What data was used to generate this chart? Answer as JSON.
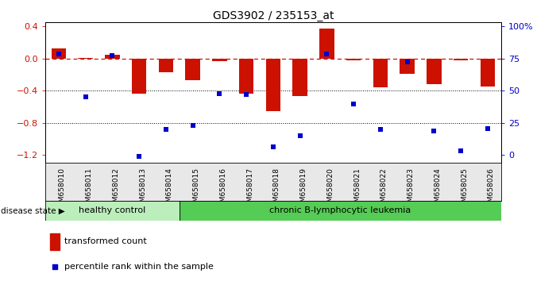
{
  "title": "GDS3902 / 235153_at",
  "samples": [
    "GSM658010",
    "GSM658011",
    "GSM658012",
    "GSM658013",
    "GSM658014",
    "GSM658015",
    "GSM658016",
    "GSM658017",
    "GSM658018",
    "GSM658019",
    "GSM658020",
    "GSM658021",
    "GSM658022",
    "GSM658023",
    "GSM658024",
    "GSM658025",
    "GSM658026"
  ],
  "red_bars": [
    0.13,
    0.01,
    0.05,
    -0.44,
    -0.17,
    -0.27,
    -0.03,
    -0.44,
    -0.65,
    -0.47,
    0.37,
    -0.02,
    -0.36,
    -0.19,
    -0.32,
    -0.02,
    -0.35
  ],
  "blue_dots": [
    0.06,
    -0.48,
    0.04,
    -1.22,
    -0.88,
    -0.83,
    -0.44,
    -0.45,
    -1.1,
    -0.96,
    0.06,
    -0.57,
    -0.88,
    -0.04,
    -0.9,
    -1.15,
    -0.87
  ],
  "ylim": [
    -1.3,
    0.45
  ],
  "yticks_left": [
    0.4,
    0.0,
    -0.4,
    -0.8,
    -1.2
  ],
  "yticks_right_vals": [
    0.4,
    0.0,
    -0.4,
    -0.8,
    -1.2
  ],
  "yticks_right_labels": [
    "100%",
    "75",
    "50",
    "25",
    "0"
  ],
  "hline_y": 0.0,
  "dotted_lines": [
    -0.4,
    -0.8
  ],
  "healthy_count": 5,
  "healthy_label": "healthy control",
  "disease_label": "chronic B-lymphocytic leukemia",
  "disease_state_label": "disease state",
  "legend_red": "transformed count",
  "legend_blue": "percentile rank within the sample",
  "bar_color": "#cc1100",
  "dot_color": "#0000cc",
  "hline_color": "#cc1100",
  "bg_color": "#ffffff",
  "healthy_bg": "#bbeebb",
  "disease_bg": "#55cc55",
  "tick_label_color_left": "#cc1100",
  "tick_label_color_right": "#0000cc",
  "bar_width": 0.55
}
